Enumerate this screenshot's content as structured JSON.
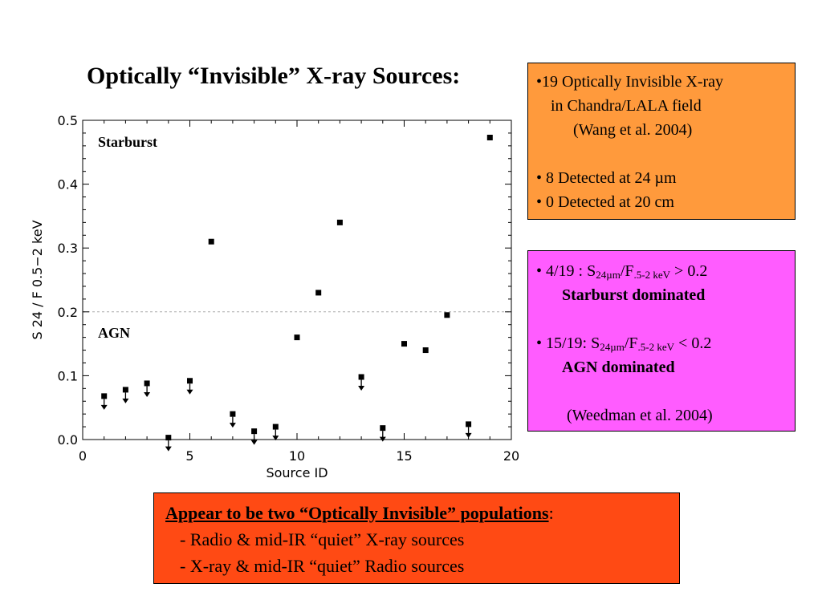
{
  "title": "Optically “Invisible” X-ray Sources:",
  "colors": {
    "orange_box": "#ff9a3c",
    "magenta_box": "#ff5cff",
    "red_box": "#ff4a14",
    "threshold_line": "#aaaaaa"
  },
  "chart_data": {
    "type": "scatter",
    "xlabel": "Source ID",
    "ylabel": "S 24 / F 0.5−2 keV",
    "xlim": [
      0,
      20
    ],
    "ylim": [
      0,
      0.5
    ],
    "x_ticks": [
      0,
      5,
      10,
      15,
      20
    ],
    "x_tick_labels": [
      "0",
      "5",
      "10",
      "15",
      "20"
    ],
    "y_ticks": [
      0.0,
      0.1,
      0.2,
      0.3,
      0.4,
      0.5
    ],
    "y_tick_labels": [
      "0.0",
      "0.1",
      "0.2",
      "0.3",
      "0.4",
      "0.5"
    ],
    "threshold": 0.2,
    "threshold_style": "dashed",
    "region_labels": {
      "upper": "Starburst",
      "lower": "AGN"
    },
    "marker": "filled square",
    "upper_limit_marker": "down arrow",
    "points": [
      {
        "x": 1,
        "y": 0.068,
        "upper_limit": true
      },
      {
        "x": 2,
        "y": 0.078,
        "upper_limit": true
      },
      {
        "x": 3,
        "y": 0.088,
        "upper_limit": true
      },
      {
        "x": 4,
        "y": 0.003,
        "upper_limit": true
      },
      {
        "x": 5,
        "y": 0.092,
        "upper_limit": true
      },
      {
        "x": 6,
        "y": 0.31,
        "upper_limit": false
      },
      {
        "x": 7,
        "y": 0.04,
        "upper_limit": true
      },
      {
        "x": 8,
        "y": 0.013,
        "upper_limit": true
      },
      {
        "x": 9,
        "y": 0.02,
        "upper_limit": true
      },
      {
        "x": 10,
        "y": 0.16,
        "upper_limit": false
      },
      {
        "x": 11,
        "y": 0.23,
        "upper_limit": false
      },
      {
        "x": 12,
        "y": 0.34,
        "upper_limit": false
      },
      {
        "x": 13,
        "y": 0.098,
        "upper_limit": true
      },
      {
        "x": 14,
        "y": 0.018,
        "upper_limit": true
      },
      {
        "x": 15,
        "y": 0.15,
        "upper_limit": false
      },
      {
        "x": 16,
        "y": 0.14,
        "upper_limit": false
      },
      {
        "x": 17,
        "y": 0.195,
        "upper_limit": false
      },
      {
        "x": 18,
        "y": 0.024,
        "upper_limit": true
      },
      {
        "x": 19,
        "y": 0.473,
        "upper_limit": false
      }
    ]
  },
  "orange_box": {
    "l1": "•19 Optically Invisible X-ray",
    "l2": "in Chandra/LALA field",
    "l3": "(Wang et al. 2004)",
    "l4": "• 8 Detected at 24 µm",
    "l5": "• 0 Detected at 20 cm"
  },
  "magenta_box": {
    "item1": {
      "prefix": "• 4/19 : S",
      "sub1": "24µm",
      "mid": "/F",
      "sub2": ".5-2 keV",
      "suffix": " > 0.2",
      "label": "Starburst dominated"
    },
    "item2": {
      "prefix": "• 15/19: S",
      "sub1": "24µm",
      "mid": "/F",
      "sub2": ".5-2 keV",
      "suffix": " < 0.2",
      "label": "AGN dominated"
    },
    "ref": "(Weedman et al. 2004)"
  },
  "red_box": {
    "headline": "Appear to be two “Optically Invisible” populations",
    "colon": ":",
    "b1": "-  Radio & mid-IR “quiet” X-ray sources",
    "b2": "-  X-ray & mid-IR “quiet” Radio sources"
  }
}
